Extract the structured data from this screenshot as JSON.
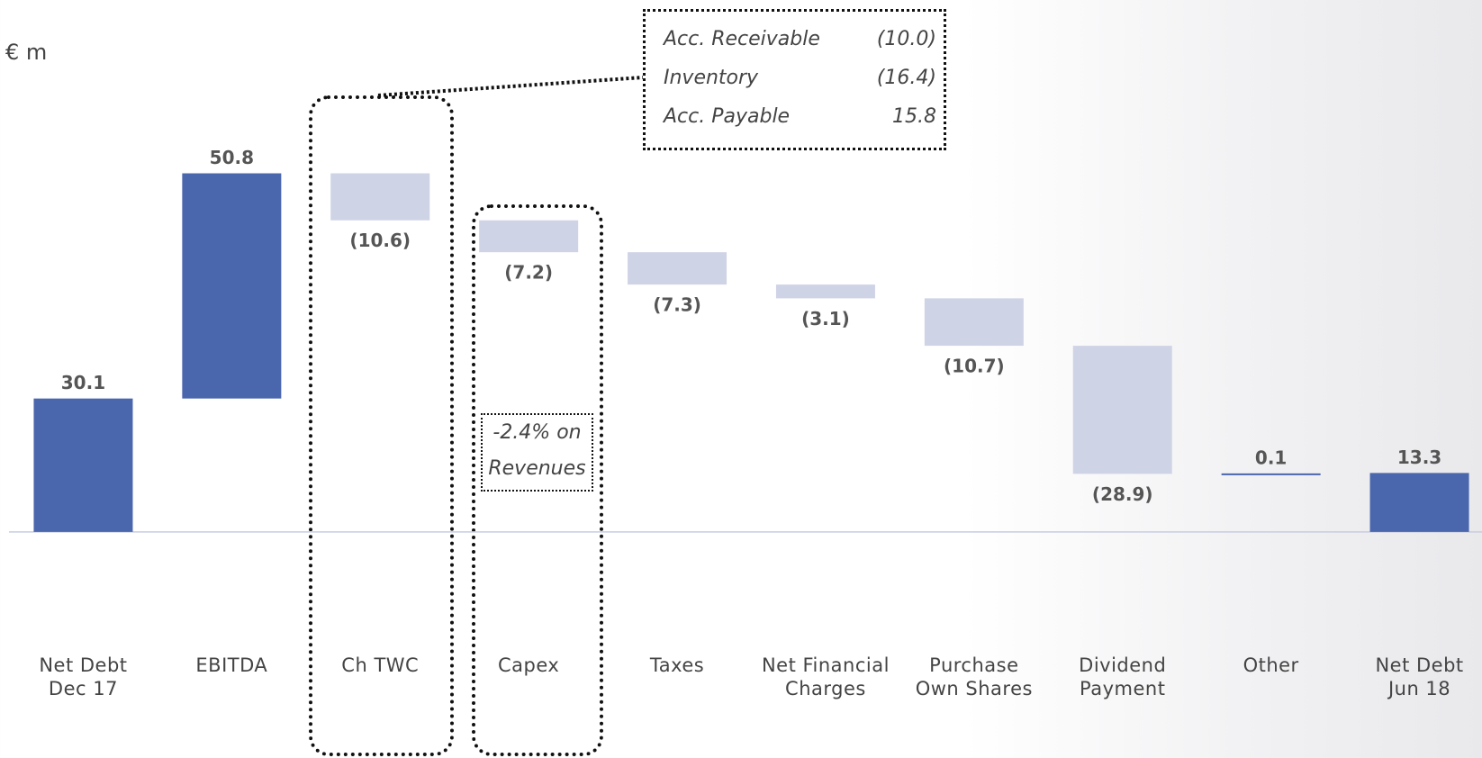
{
  "chart_data": {
    "type": "waterfall",
    "unit_label": "€ m",
    "categories": [
      "Net Debt\nDec 17",
      "EBITDA",
      "Ch TWC",
      "Capex",
      "Taxes",
      "Net Financial\nCharges",
      "Purchase\nOwn Shares",
      "Dividend\nPayment",
      "Other",
      "Net Debt\nJun 18"
    ],
    "values": [
      30.1,
      50.8,
      -10.6,
      -7.2,
      -7.3,
      -3.1,
      -10.7,
      -28.9,
      0.1,
      13.3
    ],
    "value_labels": [
      "30.1",
      "50.8",
      "(10.6)",
      "(7.2)",
      "(7.3)",
      "(3.1)",
      "(10.7)",
      "(28.9)",
      "0.1",
      "13.3"
    ],
    "colors": {
      "total": "#4a66ad",
      "increase": "#4a66ad",
      "decrease": "#cfd3e6"
    },
    "ylim": [
      -51,
      120
    ],
    "twc_breakdown": [
      {
        "label": "Acc. Receivable",
        "value_label": "(10.0)"
      },
      {
        "label": "Inventory",
        "value_label": "(16.4)"
      },
      {
        "label": "Acc. Payable",
        "value_label": "15.8"
      }
    ],
    "capex_note": "-2.4% on\nRevenues"
  }
}
